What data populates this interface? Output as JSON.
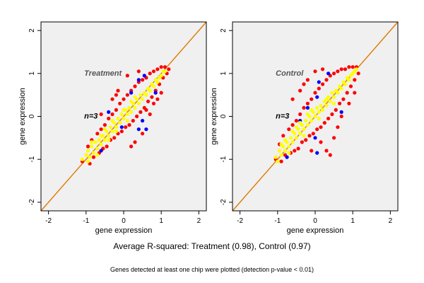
{
  "caption": {
    "main": "Average R-squared: Treatment (0.98), Control (0.97)",
    "note": "Genes detected at least one chip were plotted (detection p-value < 0.01)"
  },
  "colors": {
    "red_points": "#ff0000",
    "blue_points": "#0000ff",
    "yellow_points": "#ffff00",
    "diagonal_line": "#e07a00",
    "panel_background": "#f0f0f0"
  },
  "chart_data": [
    {
      "type": "scatter",
      "title": "Treatment",
      "annotation": "n=3",
      "xlabel": "gene expression",
      "ylabel": "gene expression",
      "xlim": [
        -2.2,
        2.2
      ],
      "ylim": [
        -2.2,
        2.2
      ],
      "xticks": [
        -2,
        -1,
        0,
        1,
        2
      ],
      "yticks": [
        -2,
        -1,
        0,
        1,
        2
      ],
      "diagonal": [
        [
          -2.2,
          -2.2
        ],
        [
          2.2,
          2.2
        ]
      ],
      "series": [
        {
          "color": "red",
          "points": [
            [
              -1.1,
              -1.05
            ],
            [
              -0.95,
              -0.7
            ],
            [
              -0.9,
              -1.1
            ],
            [
              -0.85,
              -0.55
            ],
            [
              -0.8,
              -0.95
            ],
            [
              -0.7,
              -0.4
            ],
            [
              -0.65,
              -0.85
            ],
            [
              -0.6,
              -0.3
            ],
            [
              -0.55,
              -0.75
            ],
            [
              -0.5,
              -0.2
            ],
            [
              -0.45,
              -0.7
            ],
            [
              -0.4,
              -0.05
            ],
            [
              -0.35,
              -0.55
            ],
            [
              -0.3,
              0.05
            ],
            [
              -0.25,
              -0.5
            ],
            [
              -0.2,
              0.15
            ],
            [
              -0.15,
              -0.4
            ],
            [
              -0.1,
              0.3
            ],
            [
              -0.05,
              -0.35
            ],
            [
              0.0,
              0.4
            ],
            [
              0.05,
              -0.25
            ],
            [
              0.1,
              0.5
            ],
            [
              0.15,
              -0.2
            ],
            [
              0.2,
              0.6
            ],
            [
              0.25,
              -0.1
            ],
            [
              0.3,
              0.7
            ],
            [
              0.35,
              0.0
            ],
            [
              0.4,
              0.8
            ],
            [
              0.45,
              0.1
            ],
            [
              0.5,
              0.85
            ],
            [
              0.55,
              0.2
            ],
            [
              0.6,
              0.9
            ],
            [
              0.65,
              0.35
            ],
            [
              0.7,
              1.0
            ],
            [
              0.75,
              0.45
            ],
            [
              0.8,
              1.05
            ],
            [
              0.85,
              0.6
            ],
            [
              0.9,
              1.1
            ],
            [
              0.95,
              0.75
            ],
            [
              1.0,
              1.15
            ],
            [
              1.05,
              0.9
            ],
            [
              1.1,
              1.15
            ],
            [
              1.15,
              1.0
            ],
            [
              1.2,
              1.1
            ],
            [
              0.4,
              1.05
            ],
            [
              0.6,
              0.15
            ],
            [
              0.8,
              0.3
            ],
            [
              0.5,
              -0.4
            ],
            [
              0.3,
              -0.6
            ],
            [
              -0.2,
              0.5
            ],
            [
              -0.6,
              0.05
            ],
            [
              0.9,
              0.4
            ],
            [
              0.2,
              -0.7
            ],
            [
              0.1,
              0.95
            ],
            [
              -0.3,
              0.4
            ],
            [
              1.0,
              0.55
            ],
            [
              0.7,
              0.05
            ],
            [
              -0.15,
              0.6
            ]
          ]
        },
        {
          "color": "blue",
          "points": [
            [
              -0.4,
              0.1
            ],
            [
              -0.05,
              -0.25
            ],
            [
              0.5,
              -0.1
            ],
            [
              0.4,
              -0.3
            ],
            [
              0.2,
              0.55
            ],
            [
              0.85,
              0.55
            ],
            [
              0.55,
              0.95
            ],
            [
              0.6,
              -0.3
            ],
            [
              -0.6,
              -0.8
            ],
            [
              0.4,
              0.85
            ]
          ]
        },
        {
          "color": "yellow",
          "points": [
            [
              -1.1,
              -1.0
            ],
            [
              -1.0,
              -0.9
            ],
            [
              -0.95,
              -0.8
            ],
            [
              -0.9,
              -0.95
            ],
            [
              -0.85,
              -0.7
            ],
            [
              -0.8,
              -0.85
            ],
            [
              -0.75,
              -0.6
            ],
            [
              -0.7,
              -0.75
            ],
            [
              -0.65,
              -0.55
            ],
            [
              -0.6,
              -0.65
            ],
            [
              -0.55,
              -0.45
            ],
            [
              -0.5,
              -0.55
            ],
            [
              -0.45,
              -0.35
            ],
            [
              -0.4,
              -0.45
            ],
            [
              -0.35,
              -0.25
            ],
            [
              -0.3,
              -0.35
            ],
            [
              -0.25,
              -0.15
            ],
            [
              -0.2,
              -0.25
            ],
            [
              -0.15,
              -0.05
            ],
            [
              -0.1,
              -0.15
            ],
            [
              -0.05,
              0.05
            ],
            [
              0.0,
              -0.05
            ],
            [
              0.05,
              0.15
            ],
            [
              0.1,
              0.05
            ],
            [
              0.15,
              0.2
            ],
            [
              0.2,
              0.1
            ],
            [
              0.25,
              0.3
            ],
            [
              0.3,
              0.2
            ],
            [
              0.35,
              0.4
            ],
            [
              0.4,
              0.3
            ],
            [
              0.45,
              0.5
            ],
            [
              0.5,
              0.4
            ],
            [
              0.55,
              0.55
            ],
            [
              0.6,
              0.5
            ],
            [
              0.65,
              0.65
            ],
            [
              0.7,
              0.6
            ],
            [
              0.75,
              0.75
            ],
            [
              0.8,
              0.7
            ],
            [
              0.85,
              0.85
            ],
            [
              0.9,
              0.8
            ],
            [
              0.95,
              0.9
            ],
            [
              1.0,
              0.95
            ],
            [
              1.05,
              1.05
            ],
            [
              1.1,
              1.05
            ],
            [
              -0.95,
              -1.05
            ],
            [
              -0.7,
              -0.9
            ],
            [
              -0.5,
              -0.3
            ],
            [
              -0.3,
              -0.1
            ],
            [
              0.0,
              0.15
            ],
            [
              0.2,
              0.35
            ],
            [
              -0.85,
              -0.6
            ],
            [
              -0.6,
              -0.45
            ],
            [
              -0.4,
              -0.55
            ],
            [
              -0.2,
              -0.35
            ],
            [
              0.1,
              -0.1
            ],
            [
              0.3,
              0.45
            ]
          ]
        }
      ]
    },
    {
      "type": "scatter",
      "title": "Control",
      "annotation": "n=3",
      "xlabel": "gene expression",
      "ylabel": "gene expression",
      "xlim": [
        -2.2,
        2.2
      ],
      "ylim": [
        -2.2,
        2.2
      ],
      "xticks": [
        -2,
        -1,
        0,
        1,
        2
      ],
      "yticks": [
        -2,
        -1,
        0,
        1,
        2
      ],
      "diagonal": [
        [
          -2.2,
          -2.2
        ],
        [
          2.2,
          2.2
        ]
      ],
      "series": [
        {
          "color": "red",
          "points": [
            [
              -1.05,
              -1.0
            ],
            [
              -0.95,
              -0.65
            ],
            [
              -0.9,
              -1.05
            ],
            [
              -0.85,
              -0.45
            ],
            [
              -0.8,
              -0.9
            ],
            [
              -0.7,
              -0.3
            ],
            [
              -0.65,
              -0.85
            ],
            [
              -0.6,
              -0.2
            ],
            [
              -0.55,
              -0.8
            ],
            [
              -0.5,
              -0.1
            ],
            [
              -0.45,
              -0.75
            ],
            [
              -0.4,
              0.05
            ],
            [
              -0.35,
              -0.6
            ],
            [
              -0.3,
              0.2
            ],
            [
              -0.25,
              -0.55
            ],
            [
              -0.2,
              0.3
            ],
            [
              -0.15,
              -0.45
            ],
            [
              -0.1,
              0.4
            ],
            [
              -0.05,
              -0.4
            ],
            [
              0.0,
              0.55
            ],
            [
              0.05,
              -0.3
            ],
            [
              0.1,
              0.65
            ],
            [
              0.15,
              -0.25
            ],
            [
              0.2,
              0.75
            ],
            [
              0.25,
              -0.15
            ],
            [
              0.3,
              0.85
            ],
            [
              0.35,
              -0.05
            ],
            [
              0.4,
              0.95
            ],
            [
              0.45,
              0.05
            ],
            [
              0.5,
              1.0
            ],
            [
              0.55,
              0.15
            ],
            [
              0.6,
              1.05
            ],
            [
              0.65,
              0.3
            ],
            [
              0.7,
              1.1
            ],
            [
              0.75,
              0.4
            ],
            [
              0.8,
              1.1
            ],
            [
              0.85,
              0.55
            ],
            [
              0.9,
              1.15
            ],
            [
              0.95,
              0.7
            ],
            [
              1.0,
              1.15
            ],
            [
              1.05,
              0.85
            ],
            [
              1.1,
              1.15
            ],
            [
              1.15,
              1.0
            ],
            [
              0.0,
              1.05
            ],
            [
              -0.2,
              0.85
            ],
            [
              0.2,
              1.1
            ],
            [
              -0.4,
              0.6
            ],
            [
              -0.6,
              0.4
            ],
            [
              0.5,
              -0.5
            ],
            [
              0.3,
              -0.8
            ],
            [
              0.4,
              -0.9
            ],
            [
              -0.1,
              -0.8
            ],
            [
              0.7,
              0.0
            ],
            [
              0.9,
              0.3
            ],
            [
              -0.3,
              0.75
            ],
            [
              0.15,
              -0.6
            ],
            [
              0.6,
              -0.25
            ],
            [
              1.05,
              0.55
            ]
          ]
        },
        {
          "color": "blue",
          "points": [
            [
              -0.4,
              -0.1
            ],
            [
              -0.2,
              0.2
            ],
            [
              0.05,
              0.45
            ],
            [
              0.35,
              1.0
            ],
            [
              0.7,
              0.1
            ],
            [
              0.0,
              -0.5
            ],
            [
              -0.75,
              -0.95
            ],
            [
              0.1,
              0.8
            ],
            [
              0.05,
              -0.85
            ]
          ]
        },
        {
          "color": "yellow",
          "points": [
            [
              -1.05,
              -0.95
            ],
            [
              -1.0,
              -1.05
            ],
            [
              -0.95,
              -0.8
            ],
            [
              -0.9,
              -0.9
            ],
            [
              -0.85,
              -0.7
            ],
            [
              -0.8,
              -0.8
            ],
            [
              -0.75,
              -0.6
            ],
            [
              -0.7,
              -0.7
            ],
            [
              -0.65,
              -0.5
            ],
            [
              -0.6,
              -0.6
            ],
            [
              -0.55,
              -0.4
            ],
            [
              -0.5,
              -0.5
            ],
            [
              -0.45,
              -0.3
            ],
            [
              -0.4,
              -0.4
            ],
            [
              -0.35,
              -0.2
            ],
            [
              -0.3,
              -0.3
            ],
            [
              -0.25,
              -0.1
            ],
            [
              -0.2,
              -0.2
            ],
            [
              -0.15,
              0.0
            ],
            [
              -0.1,
              -0.1
            ],
            [
              -0.05,
              0.1
            ],
            [
              0.0,
              0.0
            ],
            [
              0.05,
              0.2
            ],
            [
              0.1,
              0.1
            ],
            [
              0.15,
              0.25
            ],
            [
              0.2,
              0.15
            ],
            [
              0.25,
              0.35
            ],
            [
              0.3,
              0.25
            ],
            [
              0.35,
              0.45
            ],
            [
              0.4,
              0.35
            ],
            [
              0.45,
              0.55
            ],
            [
              0.5,
              0.45
            ],
            [
              0.55,
              0.6
            ],
            [
              0.6,
              0.55
            ],
            [
              0.65,
              0.7
            ],
            [
              0.7,
              0.65
            ],
            [
              0.75,
              0.8
            ],
            [
              0.8,
              0.75
            ],
            [
              0.85,
              0.9
            ],
            [
              0.9,
              0.85
            ],
            [
              0.95,
              0.95
            ],
            [
              1.0,
              1.0
            ],
            [
              1.05,
              1.05
            ],
            [
              1.1,
              1.1
            ],
            [
              -0.9,
              -0.65
            ],
            [
              -0.7,
              -0.85
            ],
            [
              -0.5,
              -0.25
            ],
            [
              -0.3,
              -0.45
            ],
            [
              -0.1,
              0.15
            ],
            [
              0.1,
              -0.05
            ],
            [
              0.3,
              0.4
            ],
            [
              0.5,
              0.3
            ],
            [
              -0.8,
              -0.55
            ],
            [
              -0.6,
              -0.35
            ],
            [
              -0.4,
              -0.15
            ],
            [
              -0.2,
              0.05
            ]
          ]
        }
      ]
    }
  ]
}
